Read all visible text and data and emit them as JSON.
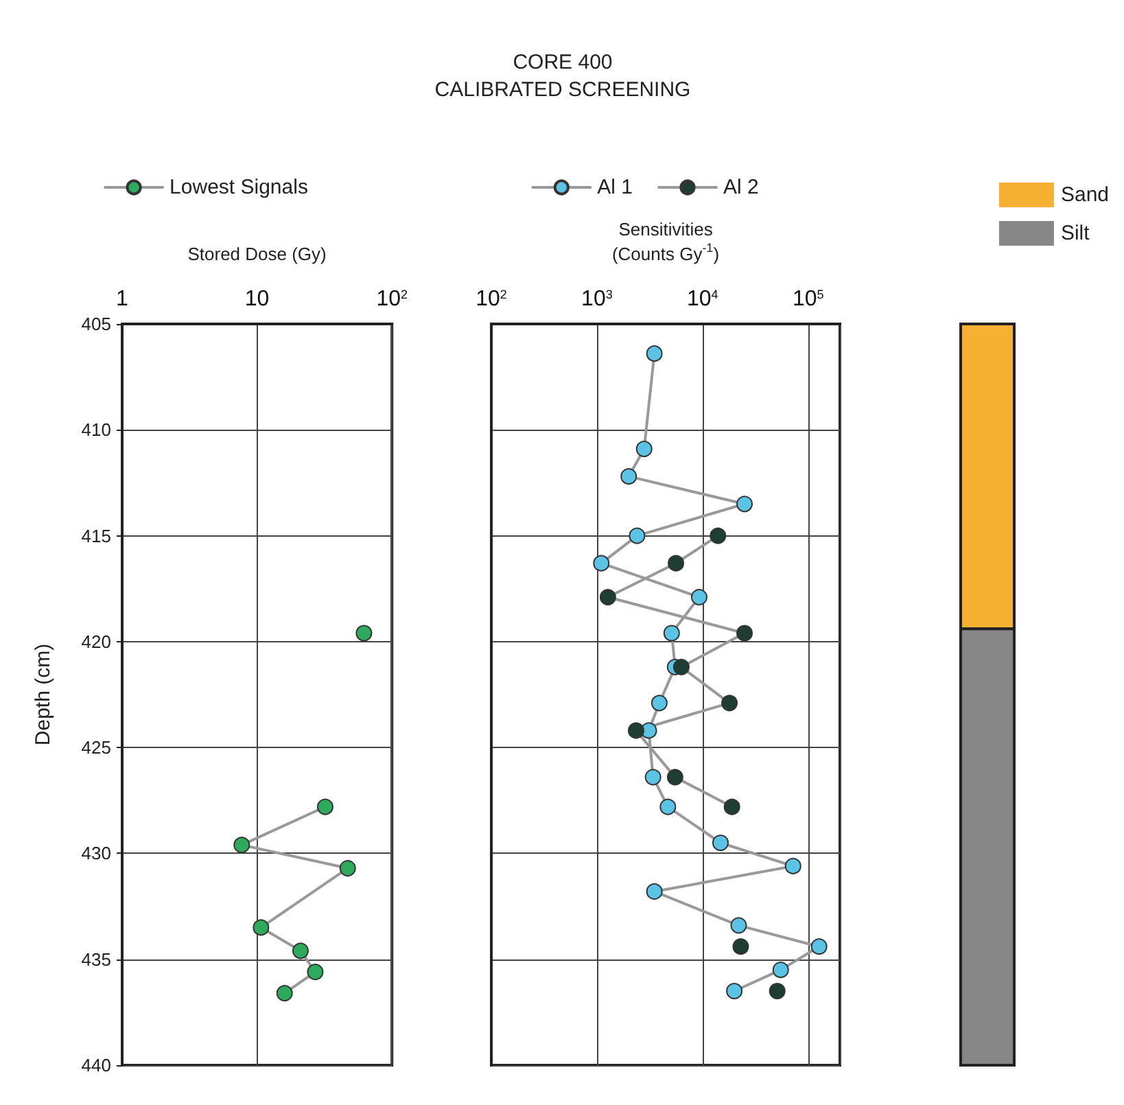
{
  "chart_data": [
    {
      "type": "line",
      "xlabel": "Stored Dose (Gy)",
      "ylabel": "Depth (cm)",
      "log": "x",
      "xlim": [
        1,
        100
      ],
      "xticks": [
        1,
        10,
        {
          "value": 100,
          "label": "10$^{2}$"
        }
      ],
      "ylim": [
        440,
        405
      ],
      "yticks": [
        405,
        410,
        415,
        420,
        425,
        430,
        435,
        440
      ],
      "grid": true,
      "legend": "top",
      "marker": "circle",
      "series": [
        {
          "name": "Lowest Signals",
          "color": "#2eaa5c",
          "x": [
            62,
            null,
            32,
            7.7,
            47,
            10.7,
            21,
            27,
            16
          ],
          "values": [
            419.6,
            null,
            427.8,
            429.6,
            430.7,
            433.5,
            434.6,
            435.6,
            436.6
          ]
        }
      ]
    },
    {
      "type": "line",
      "title": "CORE 400\nCALIBRATED SCREENING",
      "xlabel": "Sensitivities\n(Counts Gy$^{-1}$)",
      "log": "x",
      "xlim": [
        100,
        200000
      ],
      "xticks": [
        {
          "value": 100,
          "label": "10$^{2}$"
        },
        {
          "value": 1000,
          "label": "10$^{3}$"
        },
        {
          "value": 10000,
          "label": "10$^{4}$"
        },
        {
          "value": 100000,
          "label": "10$^{5}$"
        }
      ],
      "ylim": [
        440,
        405
      ],
      "yticks": [
        405,
        410,
        415,
        420,
        425,
        430,
        435,
        440
      ],
      "tick_labels": "x",
      "grid": true,
      "legend": "top",
      "marker": "circle",
      "series": [
        {
          "name": "Al 1",
          "color": "#5bc4e4",
          "x": [
            3500,
            2800,
            2000,
            25000,
            2400,
            1100,
            9300,
            5100,
            5500,
            3900,
            3100,
            3400,
            4700,
            14800,
            72000,
            3500,
            22000,
            127000,
            55000,
            20000
          ],
          "values": [
            406.4,
            410.9,
            412.2,
            413.5,
            415.0,
            416.3,
            417.9,
            419.6,
            421.2,
            422.9,
            424.2,
            426.4,
            427.8,
            429.5,
            430.6,
            431.8,
            433.4,
            434.4,
            435.5,
            436.5
          ]
        },
        {
          "name": "Al 2",
          "color": "#1e3d33",
          "x": [
            14000,
            5600,
            1270,
            25000,
            6300,
            18000,
            2350,
            5500,
            19000,
            null,
            23000,
            null,
            51000
          ],
          "values": [
            415.0,
            416.3,
            417.9,
            419.6,
            421.2,
            422.9,
            424.2,
            426.4,
            427.8,
            null,
            434.4,
            null,
            436.5
          ]
        }
      ]
    },
    {
      "type": "bar",
      "categories": [
        null
      ],
      "ylim": [
        440,
        405
      ],
      "tick_labels": false,
      "legend": "top right",
      "series": [
        {
          "name": "Sand",
          "color": "#f7b132",
          "base": [
            405
          ],
          "values": [
            14.4
          ]
        },
        {
          "name": "Silt",
          "color": "#878787",
          "base": [
            419.4
          ],
          "values": [
            20.6
          ]
        }
      ]
    }
  ]
}
